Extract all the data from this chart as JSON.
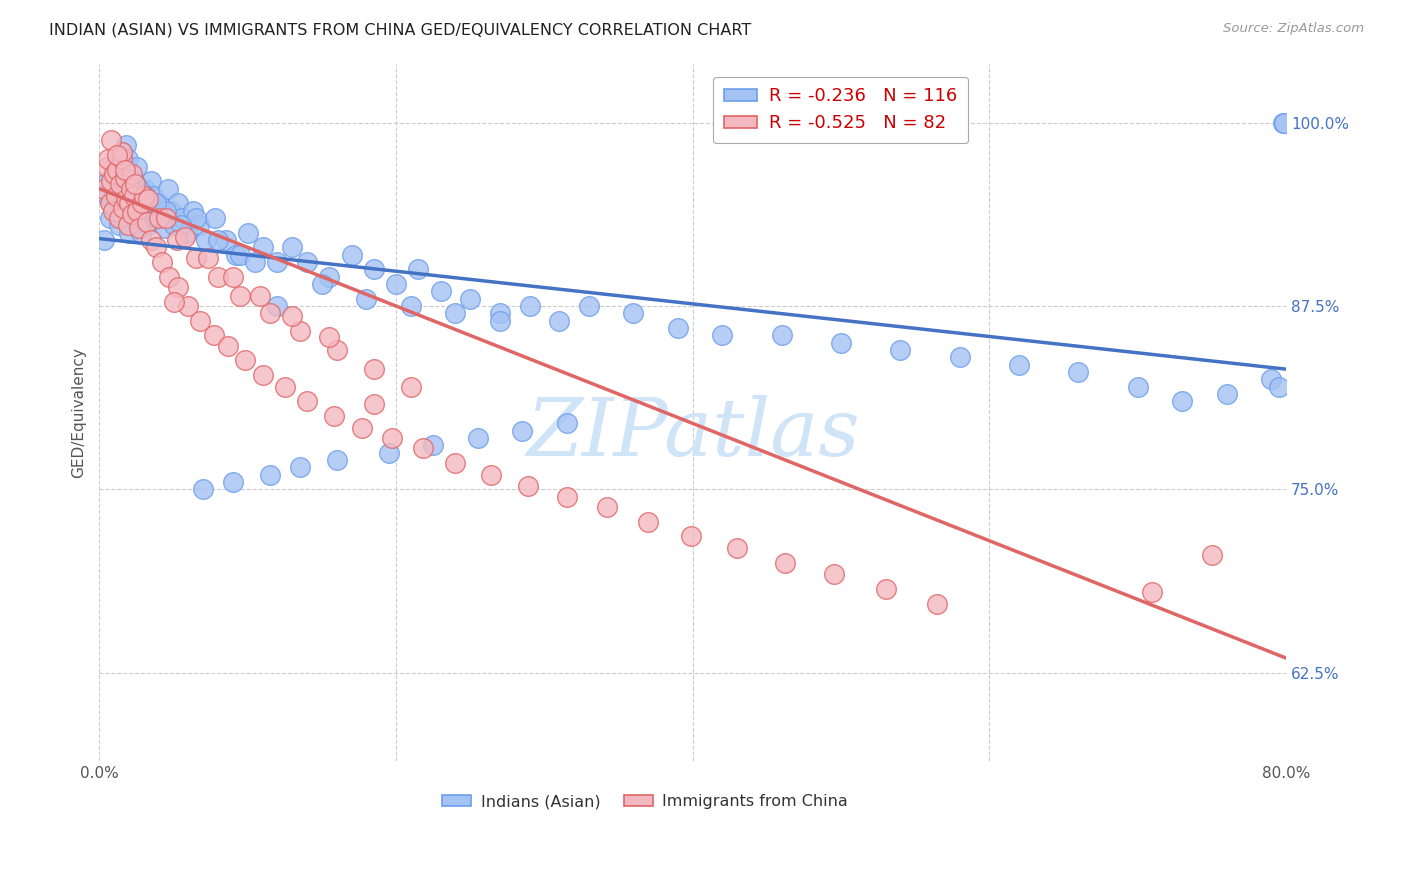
{
  "title": "INDIAN (ASIAN) VS IMMIGRANTS FROM CHINA GED/EQUIVALENCY CORRELATION CHART",
  "source": "Source: ZipAtlas.com",
  "ylabel": "GED/Equivalency",
  "ytick_labels": [
    "100.0%",
    "87.5%",
    "75.0%",
    "62.5%"
  ],
  "ytick_positions": [
    1.0,
    0.875,
    0.75,
    0.625
  ],
  "xlim": [
    0.0,
    0.8
  ],
  "ylim": [
    0.565,
    1.04
  ],
  "legend_r1": "-0.236",
  "legend_n1": "116",
  "legend_r2": "-0.525",
  "legend_n2": "82",
  "blue_color": "#a4c2f4",
  "pink_color": "#f4b8c1",
  "blue_edge_color": "#6d9eeb",
  "pink_edge_color": "#e06666",
  "blue_line_color": "#4472c4",
  "pink_line_color": "#e06666",
  "watermark_color": "#d0e4f7",
  "blue_trend_x": [
    0.0,
    0.8
  ],
  "blue_trend_y": [
    0.921,
    0.832
  ],
  "pink_trend_x": [
    0.0,
    0.8
  ],
  "pink_trend_y": [
    0.955,
    0.635
  ],
  "blue_x": [
    0.003,
    0.005,
    0.006,
    0.007,
    0.008,
    0.009,
    0.01,
    0.01,
    0.011,
    0.012,
    0.013,
    0.013,
    0.014,
    0.014,
    0.015,
    0.015,
    0.016,
    0.016,
    0.017,
    0.017,
    0.018,
    0.018,
    0.019,
    0.019,
    0.02,
    0.02,
    0.021,
    0.022,
    0.023,
    0.024,
    0.025,
    0.026,
    0.027,
    0.028,
    0.029,
    0.03,
    0.031,
    0.032,
    0.033,
    0.034,
    0.035,
    0.036,
    0.038,
    0.04,
    0.042,
    0.044,
    0.046,
    0.048,
    0.05,
    0.053,
    0.056,
    0.059,
    0.063,
    0.067,
    0.072,
    0.078,
    0.085,
    0.092,
    0.1,
    0.11,
    0.12,
    0.13,
    0.14,
    0.155,
    0.17,
    0.185,
    0.2,
    0.215,
    0.23,
    0.25,
    0.27,
    0.29,
    0.31,
    0.33,
    0.36,
    0.39,
    0.42,
    0.46,
    0.5,
    0.54,
    0.58,
    0.62,
    0.66,
    0.7,
    0.73,
    0.76,
    0.79,
    0.795,
    0.798,
    0.799,
    0.12,
    0.15,
    0.18,
    0.21,
    0.24,
    0.27,
    0.065,
    0.08,
    0.095,
    0.105,
    0.055,
    0.045,
    0.038,
    0.031,
    0.027,
    0.023,
    0.07,
    0.09,
    0.115,
    0.135,
    0.16,
    0.195,
    0.225,
    0.255,
    0.285,
    0.315
  ],
  "blue_y": [
    0.92,
    0.95,
    0.96,
    0.935,
    0.945,
    0.955,
    0.97,
    0.965,
    0.94,
    0.96,
    0.93,
    0.975,
    0.968,
    0.955,
    0.98,
    0.962,
    0.958,
    0.942,
    0.972,
    0.948,
    0.985,
    0.945,
    0.975,
    0.938,
    0.965,
    0.925,
    0.955,
    0.948,
    0.96,
    0.94,
    0.97,
    0.935,
    0.95,
    0.925,
    0.945,
    0.935,
    0.955,
    0.94,
    0.93,
    0.945,
    0.96,
    0.95,
    0.935,
    0.945,
    0.938,
    0.928,
    0.955,
    0.94,
    0.93,
    0.945,
    0.935,
    0.925,
    0.94,
    0.93,
    0.92,
    0.935,
    0.92,
    0.91,
    0.925,
    0.915,
    0.905,
    0.915,
    0.905,
    0.895,
    0.91,
    0.9,
    0.89,
    0.9,
    0.885,
    0.88,
    0.87,
    0.875,
    0.865,
    0.875,
    0.87,
    0.86,
    0.855,
    0.855,
    0.85,
    0.845,
    0.84,
    0.835,
    0.83,
    0.82,
    0.81,
    0.815,
    0.825,
    0.82,
    1.0,
    1.0,
    0.875,
    0.89,
    0.88,
    0.875,
    0.87,
    0.865,
    0.935,
    0.92,
    0.91,
    0.905,
    0.93,
    0.94,
    0.945,
    0.95,
    0.955,
    0.96,
    0.75,
    0.755,
    0.76,
    0.765,
    0.77,
    0.775,
    0.78,
    0.785,
    0.79,
    0.795
  ],
  "pink_x": [
    0.003,
    0.005,
    0.006,
    0.007,
    0.008,
    0.009,
    0.01,
    0.011,
    0.012,
    0.013,
    0.014,
    0.015,
    0.016,
    0.017,
    0.018,
    0.019,
    0.02,
    0.021,
    0.022,
    0.023,
    0.025,
    0.027,
    0.029,
    0.032,
    0.035,
    0.038,
    0.042,
    0.047,
    0.053,
    0.06,
    0.068,
    0.077,
    0.087,
    0.098,
    0.11,
    0.125,
    0.14,
    0.158,
    0.177,
    0.197,
    0.218,
    0.24,
    0.264,
    0.289,
    0.315,
    0.342,
    0.37,
    0.399,
    0.43,
    0.462,
    0.495,
    0.53,
    0.565,
    0.015,
    0.022,
    0.03,
    0.04,
    0.052,
    0.065,
    0.08,
    0.095,
    0.115,
    0.135,
    0.16,
    0.185,
    0.21,
    0.008,
    0.012,
    0.017,
    0.024,
    0.033,
    0.045,
    0.058,
    0.073,
    0.09,
    0.108,
    0.13,
    0.155,
    0.71,
    0.75,
    0.185,
    0.05
  ],
  "pink_y": [
    0.955,
    0.97,
    0.975,
    0.945,
    0.96,
    0.94,
    0.965,
    0.95,
    0.968,
    0.935,
    0.958,
    0.975,
    0.942,
    0.962,
    0.948,
    0.93,
    0.945,
    0.955,
    0.938,
    0.95,
    0.94,
    0.928,
    0.945,
    0.932,
    0.92,
    0.915,
    0.905,
    0.895,
    0.888,
    0.875,
    0.865,
    0.855,
    0.848,
    0.838,
    0.828,
    0.82,
    0.81,
    0.8,
    0.792,
    0.785,
    0.778,
    0.768,
    0.76,
    0.752,
    0.745,
    0.738,
    0.728,
    0.718,
    0.71,
    0.7,
    0.692,
    0.682,
    0.672,
    0.98,
    0.965,
    0.95,
    0.935,
    0.92,
    0.908,
    0.895,
    0.882,
    0.87,
    0.858,
    0.845,
    0.832,
    0.82,
    0.988,
    0.978,
    0.968,
    0.958,
    0.948,
    0.935,
    0.922,
    0.908,
    0.895,
    0.882,
    0.868,
    0.854,
    0.68,
    0.705,
    0.808,
    0.878
  ]
}
